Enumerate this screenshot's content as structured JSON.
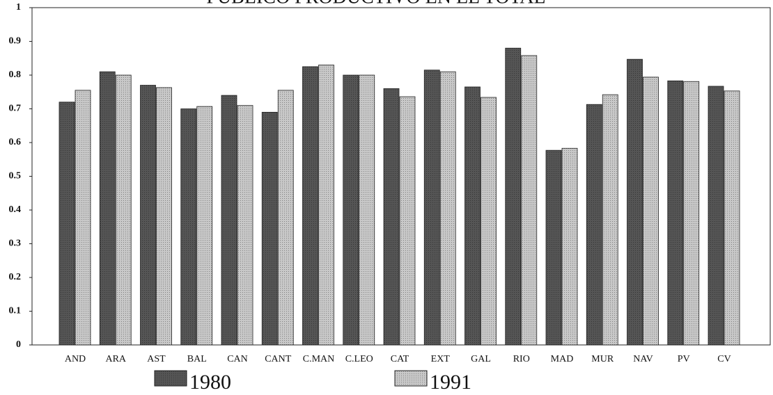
{
  "chart_data": {
    "type": "bar",
    "title": "PUBLICO PRODUCTIVO EN EL TOTAL",
    "categories": [
      "AND",
      "ARA",
      "AST",
      "BAL",
      "CAN",
      "CANT",
      "C.MAN",
      "C.LEO",
      "CAT",
      "EXT",
      "GAL",
      "RIO",
      "MAD",
      "MUR",
      "NAV",
      "PV",
      "CV"
    ],
    "series": [
      {
        "name": "1980",
        "color": "#555555",
        "values": [
          0.72,
          0.81,
          0.77,
          0.7,
          0.74,
          0.69,
          0.825,
          0.8,
          0.76,
          0.815,
          0.765,
          0.88,
          0.577,
          0.713,
          0.847,
          0.783,
          0.767
        ]
      },
      {
        "name": "1991",
        "color": "#c8c8c8",
        "values": [
          0.755,
          0.8,
          0.763,
          0.707,
          0.71,
          0.755,
          0.83,
          0.8,
          0.736,
          0.81,
          0.734,
          0.858,
          0.583,
          0.742,
          0.794,
          0.781,
          0.753
        ]
      }
    ],
    "ylim": [
      0,
      1
    ],
    "yticks": [
      0,
      0.1,
      0.2,
      0.3,
      0.4,
      0.5,
      0.6,
      0.7,
      0.8,
      0.9,
      1
    ],
    "grid": false
  }
}
